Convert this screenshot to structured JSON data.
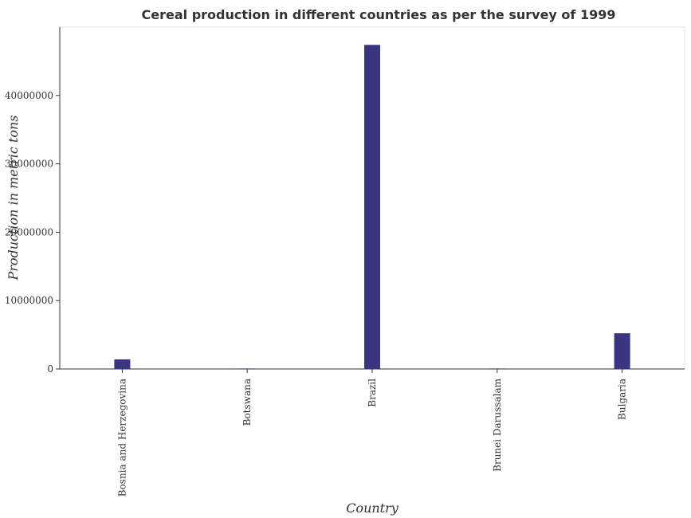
{
  "chart_data": {
    "type": "bar",
    "title": "Cereal production in different countries as per the survey of 1999",
    "xlabel": "Country",
    "ylabel": "Production in metric tons",
    "categories": [
      "Bosnia and Herzegovina",
      "Botswana",
      "Brazil",
      "Brunei Darussalam",
      "Bulgaria"
    ],
    "values": [
      1400000,
      30000,
      47400000,
      500,
      5220000
    ],
    "yticks": [
      0,
      10000000,
      20000000,
      30000000,
      40000000
    ],
    "ytick_labels": [
      "0",
      "10000000",
      "20000000",
      "30000000",
      "40000000"
    ],
    "ylim": [
      0,
      50000000
    ],
    "bar_color": "#3b3480",
    "grid": false,
    "legend": "none"
  }
}
